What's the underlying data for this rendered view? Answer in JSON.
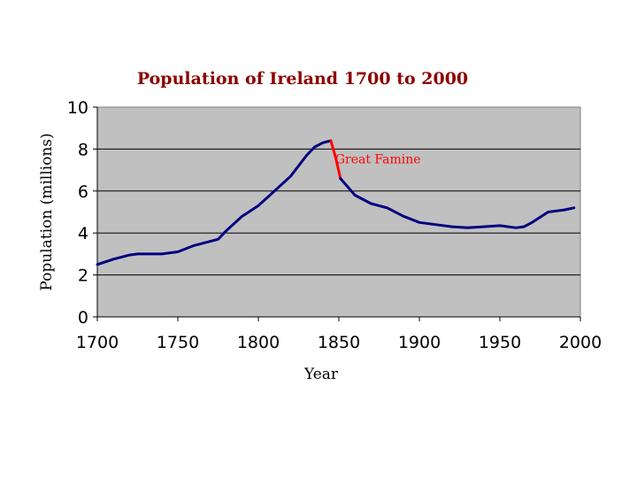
{
  "chart_data": {
    "type": "line",
    "title": "Population of Ireland 1700 to 2000",
    "xlabel": "Year",
    "ylabel": "Population (millions)",
    "xlim": [
      1700,
      2000
    ],
    "ylim": [
      0,
      10
    ],
    "x_ticks": [
      1700,
      1750,
      1800,
      1850,
      1900,
      1950,
      2000
    ],
    "y_ticks": [
      0,
      2,
      4,
      6,
      8,
      10
    ],
    "grid": "horizontal",
    "legend": "none",
    "plot_background": "#c0c0c0",
    "series": [
      {
        "color": "#000080",
        "x": [
          1700,
          1710,
          1720,
          1725,
          1740,
          1750,
          1760,
          1770,
          1775,
          1780,
          1790,
          1800,
          1810,
          1820,
          1830,
          1835,
          1840,
          1845
        ],
        "y": [
          2.5,
          2.75,
          2.95,
          3.0,
          3.0,
          3.1,
          3.4,
          3.6,
          3.7,
          4.1,
          4.8,
          5.3,
          6.0,
          6.7,
          7.7,
          8.1,
          8.3,
          8.4
        ]
      },
      {
        "name": "Great Famine",
        "color": "#ff0000",
        "x": [
          1845,
          1848,
          1851
        ],
        "y": [
          8.4,
          7.6,
          6.6
        ]
      },
      {
        "color": "#000080",
        "x": [
          1851,
          1860,
          1870,
          1880,
          1890,
          1900,
          1910,
          1920,
          1930,
          1940,
          1950,
          1955,
          1960,
          1965,
          1970,
          1980,
          1990,
          1996
        ],
        "y": [
          6.6,
          5.8,
          5.4,
          5.2,
          4.8,
          4.5,
          4.4,
          4.3,
          4.25,
          4.3,
          4.35,
          4.3,
          4.25,
          4.3,
          4.5,
          5.0,
          5.1,
          5.2
        ]
      }
    ],
    "annotations": [
      {
        "text": "Great Famine",
        "x": 1851,
        "y": 7.5,
        "color": "#ff0000"
      }
    ]
  }
}
